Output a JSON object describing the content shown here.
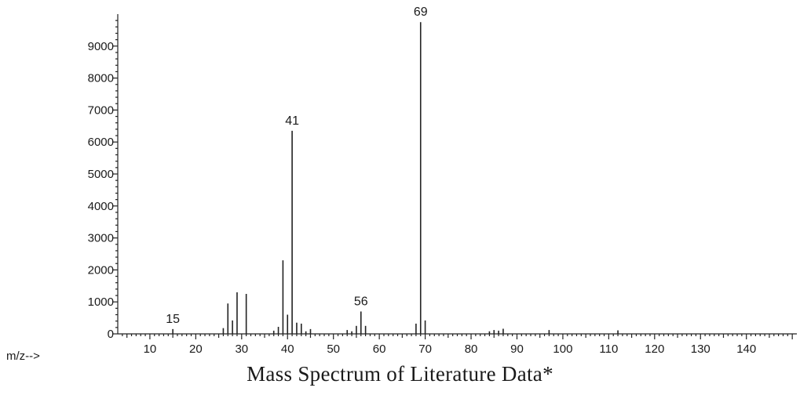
{
  "chart_data": {
    "type": "bar",
    "title": "",
    "xlabel": "m/z-->",
    "ylabel": "",
    "caption": "Mass Spectrum of Literature Data*",
    "xlim": [
      3,
      151
    ],
    "ylim": [
      0,
      10000
    ],
    "x_ticks": [
      10,
      20,
      30,
      40,
      50,
      60,
      70,
      80,
      90,
      100,
      110,
      120,
      130,
      140
    ],
    "y_ticks": [
      0,
      1000,
      2000,
      3000,
      4000,
      5000,
      6000,
      7000,
      8000,
      9000
    ],
    "grid": false,
    "labeled_peaks": [
      15,
      41,
      56,
      69
    ],
    "peaks": [
      {
        "mz": 15,
        "abundance": 150
      },
      {
        "mz": 26,
        "abundance": 180
      },
      {
        "mz": 27,
        "abundance": 950
      },
      {
        "mz": 28,
        "abundance": 420
      },
      {
        "mz": 29,
        "abundance": 1300
      },
      {
        "mz": 31,
        "abundance": 1250
      },
      {
        "mz": 37,
        "abundance": 100
      },
      {
        "mz": 38,
        "abundance": 220
      },
      {
        "mz": 39,
        "abundance": 2300
      },
      {
        "mz": 40,
        "abundance": 600
      },
      {
        "mz": 41,
        "abundance": 6350
      },
      {
        "mz": 42,
        "abundance": 350
      },
      {
        "mz": 43,
        "abundance": 320
      },
      {
        "mz": 44,
        "abundance": 80
      },
      {
        "mz": 45,
        "abundance": 150
      },
      {
        "mz": 53,
        "abundance": 120
      },
      {
        "mz": 54,
        "abundance": 80
      },
      {
        "mz": 55,
        "abundance": 250
      },
      {
        "mz": 56,
        "abundance": 700
      },
      {
        "mz": 57,
        "abundance": 250
      },
      {
        "mz": 68,
        "abundance": 320
      },
      {
        "mz": 69,
        "abundance": 9750
      },
      {
        "mz": 70,
        "abundance": 420
      },
      {
        "mz": 84,
        "abundance": 80
      },
      {
        "mz": 85,
        "abundance": 120
      },
      {
        "mz": 86,
        "abundance": 100
      },
      {
        "mz": 87,
        "abundance": 160
      },
      {
        "mz": 97,
        "abundance": 120
      },
      {
        "mz": 112,
        "abundance": 110
      }
    ]
  }
}
